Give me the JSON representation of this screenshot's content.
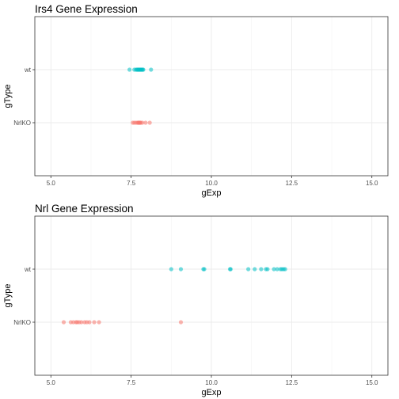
{
  "chart_data": [
    {
      "type": "scatter",
      "title": "Irs4 Gene Expression",
      "xlabel": "gExp",
      "ylabel": "gType",
      "xlim": [
        4.5,
        15.5
      ],
      "x_ticks": [
        "5.0",
        "7.5",
        "10.0",
        "12.5",
        "15.0"
      ],
      "categories": [
        "wt",
        "NrlKO"
      ],
      "grid": true,
      "series": [
        {
          "category": "wt",
          "color": "#00BFC4",
          "values": [
            7.45,
            7.6,
            7.65,
            7.68,
            7.7,
            7.72,
            7.74,
            7.76,
            7.78,
            7.8,
            7.82,
            7.84,
            7.86,
            7.88,
            8.12
          ]
        },
        {
          "category": "NrlKO",
          "color": "#F8766D",
          "values": [
            7.55,
            7.6,
            7.65,
            7.7,
            7.72,
            7.74,
            7.76,
            7.78,
            7.8,
            7.85,
            7.95,
            8.08
          ]
        }
      ]
    },
    {
      "type": "scatter",
      "title": "Nrl Gene Expression",
      "xlabel": "gExp",
      "ylabel": "gType",
      "xlim": [
        4.5,
        15.5
      ],
      "x_ticks": [
        "5.0",
        "7.5",
        "10.0",
        "12.5",
        "15.0"
      ],
      "categories": [
        "wt",
        "NrlKO"
      ],
      "grid": true,
      "series": [
        {
          "category": "wt",
          "color": "#00BFC4",
          "values": [
            8.75,
            9.05,
            9.75,
            9.78,
            10.58,
            10.6,
            11.15,
            11.35,
            11.55,
            11.7,
            11.75,
            11.95,
            12.05,
            12.15,
            12.2,
            12.25,
            12.3
          ]
        },
        {
          "category": "NrlKO",
          "color": "#F8766D",
          "values": [
            5.4,
            5.62,
            5.7,
            5.78,
            5.82,
            5.88,
            5.95,
            6.05,
            6.12,
            6.2,
            6.35,
            6.5,
            9.05
          ]
        }
      ]
    }
  ]
}
